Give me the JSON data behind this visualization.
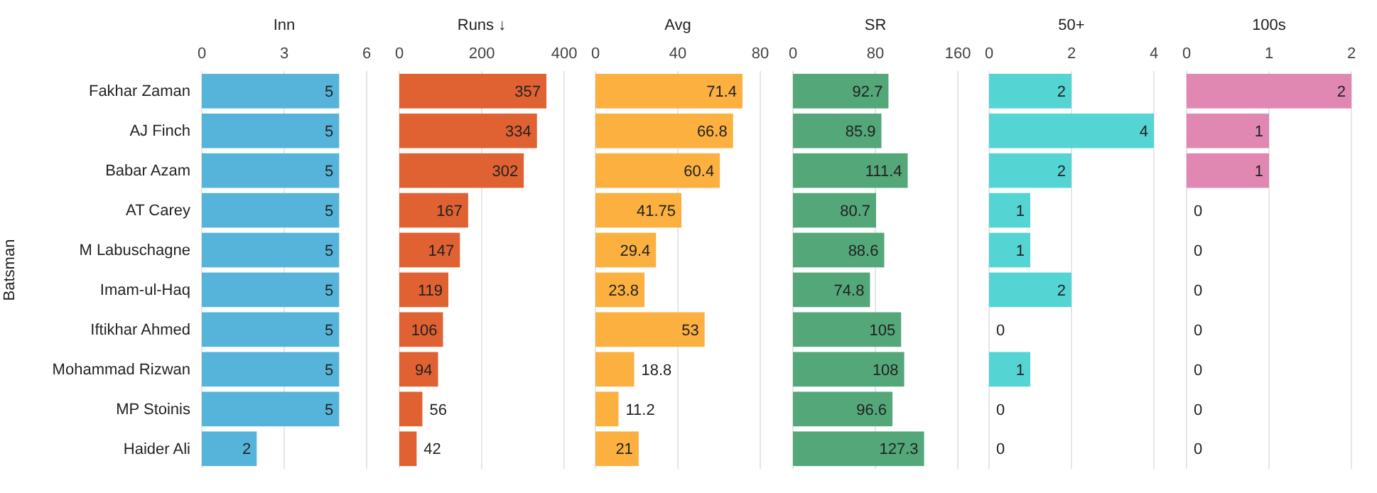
{
  "chart_data": [
    {
      "type": "bar",
      "orientation": "horizontal",
      "title": "Inn",
      "ylabel": "Batsman",
      "categories": [
        "Fakhar Zaman",
        "AJ Finch",
        "Babar Azam",
        "AT Carey",
        "M Labuschagne",
        "Imam-ul-Haq",
        "Iftikhar Ahmed",
        "Mohammad Rizwan",
        "MP Stoinis",
        "Haider Ali"
      ],
      "values": [
        5,
        5,
        5,
        5,
        5,
        5,
        5,
        5,
        5,
        2
      ],
      "color": "#56b4db",
      "xlim": [
        0,
        6
      ],
      "xticks": [
        0,
        3,
        6
      ],
      "grid": "x",
      "data_labels": true
    },
    {
      "type": "bar",
      "orientation": "horizontal",
      "title": "Runs ↓",
      "categories": [
        "Fakhar Zaman",
        "AJ Finch",
        "Babar Azam",
        "AT Carey",
        "M Labuschagne",
        "Imam-ul-Haq",
        "Iftikhar Ahmed",
        "Mohammad Rizwan",
        "MP Stoinis",
        "Haider Ali"
      ],
      "values": [
        357,
        334,
        302,
        167,
        147,
        119,
        106,
        94,
        56,
        42
      ],
      "color": "#e06131",
      "xlim": [
        0,
        400
      ],
      "xticks": [
        0,
        200,
        400
      ],
      "grid": "x",
      "data_labels": true,
      "tick_labels": "x"
    },
    {
      "type": "bar",
      "orientation": "horizontal",
      "title": "Avg",
      "categories": [
        "Fakhar Zaman",
        "AJ Finch",
        "Babar Azam",
        "AT Carey",
        "M Labuschagne",
        "Imam-ul-Haq",
        "Iftikhar Ahmed",
        "Mohammad Rizwan",
        "MP Stoinis",
        "Haider Ali"
      ],
      "values": [
        71.4,
        66.8,
        60.4,
        41.75,
        29.4,
        23.8,
        53,
        18.8,
        11.2,
        21
      ],
      "color": "#fbb040",
      "xlim": [
        0,
        80
      ],
      "xticks": [
        0,
        40,
        80
      ],
      "grid": "x",
      "data_labels": true,
      "tick_labels": "x"
    },
    {
      "type": "bar",
      "orientation": "horizontal",
      "title": "SR",
      "categories": [
        "Fakhar Zaman",
        "AJ Finch",
        "Babar Azam",
        "AT Carey",
        "M Labuschagne",
        "Imam-ul-Haq",
        "Iftikhar Ahmed",
        "Mohammad Rizwan",
        "MP Stoinis",
        "Haider Ali"
      ],
      "values": [
        92.7,
        85.9,
        111.4,
        80.7,
        88.6,
        74.8,
        105,
        108,
        96.6,
        127.3
      ],
      "color": "#53a779",
      "xlim": [
        0,
        160
      ],
      "xticks": [
        0,
        80,
        160
      ],
      "grid": "x",
      "data_labels": true,
      "tick_labels": "x"
    },
    {
      "type": "bar",
      "orientation": "horizontal",
      "title": "50+",
      "categories": [
        "Fakhar Zaman",
        "AJ Finch",
        "Babar Azam",
        "AT Carey",
        "M Labuschagne",
        "Imam-ul-Haq",
        "Iftikhar Ahmed",
        "Mohammad Rizwan",
        "MP Stoinis",
        "Haider Ali"
      ],
      "values": [
        2,
        4,
        2,
        1,
        1,
        2,
        0,
        1,
        0,
        0
      ],
      "color": "#55d4d4",
      "xlim": [
        0,
        4
      ],
      "xticks": [
        0,
        2,
        4
      ],
      "grid": "x",
      "data_labels": true,
      "tick_labels": "x"
    },
    {
      "type": "bar",
      "orientation": "horizontal",
      "title": "100s",
      "categories": [
        "Fakhar Zaman",
        "AJ Finch",
        "Babar Azam",
        "AT Carey",
        "M Labuschagne",
        "Imam-ul-Haq",
        "Iftikhar Ahmed",
        "Mohammad Rizwan",
        "MP Stoinis",
        "Haider Ali"
      ],
      "values": [
        2,
        1,
        1,
        0,
        0,
        0,
        0,
        0,
        0,
        0
      ],
      "color": "#e088b2",
      "xlim": [
        0,
        2
      ],
      "xticks": [
        0,
        1,
        2
      ],
      "grid": "x",
      "data_labels": true,
      "tick_labels": "x"
    }
  ]
}
